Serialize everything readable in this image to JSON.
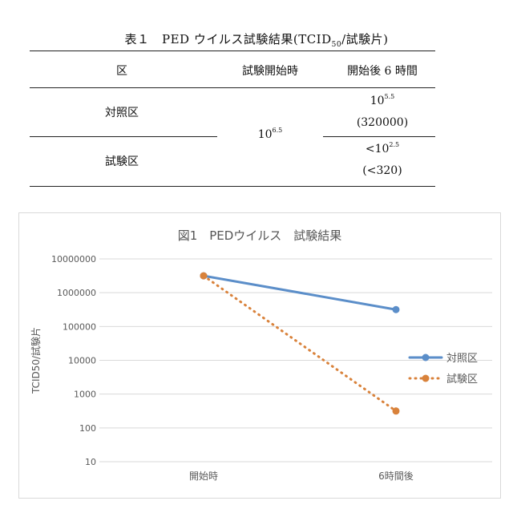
{
  "table": {
    "caption_main": "表１　PED ウイルス試験結果(TCID",
    "caption_sub": "50",
    "caption_tail": "/試験片)",
    "headers": [
      "区",
      "試験開始時",
      "開始後 6 時間"
    ],
    "rows": [
      {
        "label": "対照区",
        "after_base": "10",
        "after_exp": "5.5",
        "after_value": "(320000)"
      },
      {
        "label": "試験区",
        "after_base": "<10",
        "after_exp": "2.5",
        "after_value": "(<320)"
      }
    ],
    "start_base": "10",
    "start_exp": "6.5"
  },
  "chart_data": {
    "type": "line",
    "title": "図1　PEDウイルス　試験結果",
    "ylabel": "TCID50/試験片",
    "xlabel": "",
    "categories": [
      "開始時",
      "6時間後"
    ],
    "y_scale": "log",
    "ylim": [
      10,
      10000000
    ],
    "y_ticks": [
      "10",
      "100",
      "1000",
      "10000",
      "100000",
      "1000000",
      "10000000"
    ],
    "grid": true,
    "legend_position": "right",
    "series": [
      {
        "name": "対照区",
        "values": [
          3162278,
          316228
        ],
        "color": "#5b8ec9",
        "style": "solid"
      },
      {
        "name": "試験区",
        "values": [
          3162278,
          316
        ],
        "color": "#d9823b",
        "style": "dotted"
      }
    ]
  }
}
